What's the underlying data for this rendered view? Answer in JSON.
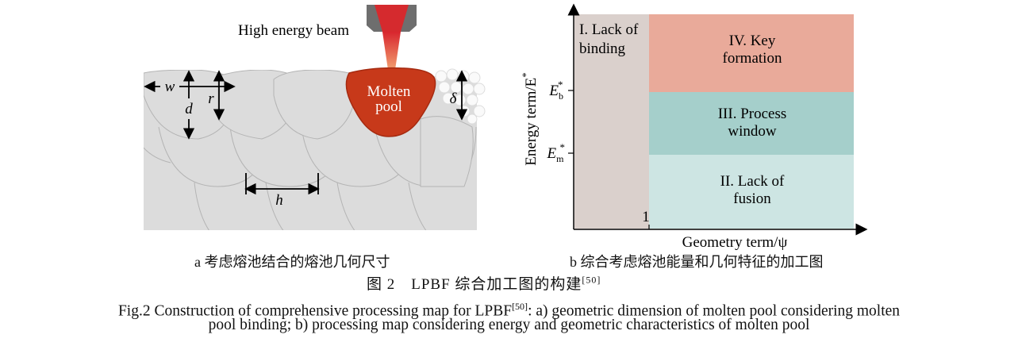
{
  "panel_a": {
    "beam_label": "High energy beam",
    "pool_label_line1": "Molten",
    "pool_label_line2": "pool",
    "dims": {
      "w": "w",
      "d": "d",
      "r": "r",
      "h": "h",
      "delta": "δ"
    },
    "caption": "a 考虑熔池结合的熔池几何尺寸",
    "colors": {
      "track": "#dcdcdc",
      "pool": "#c7391a",
      "beam": "#e04030",
      "nozzle": "#707070"
    }
  },
  "panel_b": {
    "ylabel": "Energy term/E",
    "ylabel_sup": "*",
    "xlabel": "Geometry term/ψ",
    "x_tick": "1",
    "y_tick_upper": {
      "base": "E",
      "sub": "b",
      "sup": "*"
    },
    "y_tick_lower": {
      "base": "E",
      "sub": "m",
      "sup": "*"
    },
    "regions": [
      {
        "line1": "I. Lack of",
        "line2": "binding",
        "color": "#dad0cc"
      },
      {
        "line1": "IV. Key",
        "line2": "formation",
        "color": "#e9aa9a"
      },
      {
        "line1": "III. Process",
        "line2": "window",
        "color": "#a5cfcb"
      },
      {
        "line1": "II. Lack of",
        "line2": "fusion",
        "color": "#cde5e3"
      }
    ],
    "caption": "b 综合考虑熔池能量和几何特征的加工图"
  },
  "figure": {
    "title_cn": "图 2　LPBF 综合加工图的构建",
    "ref": "[50]",
    "caption_en_1a": "Fig.2 Construction of comprehensive processing map for LPBF",
    "caption_en_1b": ": a) geometric dimension of molten pool considering molten",
    "caption_en_2": "pool binding; b) processing map considering energy and geometric characteristics of molten pool"
  }
}
